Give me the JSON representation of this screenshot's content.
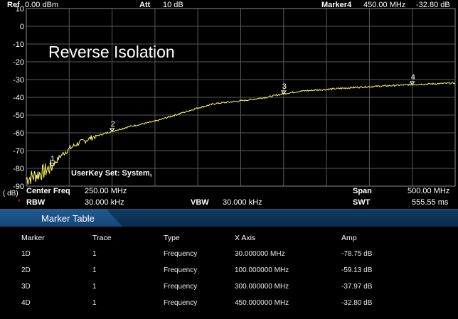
{
  "header": {
    "ref_label": "Ref",
    "ref_value": "0.00 dBm",
    "att_label": "Att",
    "att_value": "10 dB",
    "marker_label": "Marker4",
    "marker_freq": "450.00 MHz",
    "marker_amp": "-32.80 dB"
  },
  "plot": {
    "title": "Reverse Isolation",
    "userkey_text": "UserKey Set:   System,",
    "unit_label": "( dB)",
    "y_ticks": [
      "10",
      "0",
      "-10",
      "-20",
      "-30",
      "-40",
      "-50",
      "-60",
      "-70",
      "-80",
      "-90"
    ],
    "marker_labels": [
      "1",
      "2",
      "3",
      "4"
    ],
    "trace_color": "#ffff66",
    "grid_color": "#5a5a5a"
  },
  "footer": {
    "center_freq_label": "Center Freq",
    "center_freq_value": "250.00 MHz",
    "span_label": "Span",
    "span_value": "500.00 MHz",
    "rbw_label": "RBW",
    "rbw_value": "30.000 kHz",
    "vbw_label": "VBW",
    "vbw_value": "30.000 kHz",
    "swt_label": "SWT",
    "swt_value": "555.55 ms"
  },
  "marker_table": {
    "title": "Marker Table",
    "columns": [
      "Marker",
      "Trace",
      "Type",
      "X Axis",
      "Amp"
    ],
    "rows": [
      [
        "1D",
        "1",
        "Frequency",
        "30.000000 MHz",
        "-78.75 dB"
      ],
      [
        "2D",
        "1",
        "Frequency",
        "100.000000 MHz",
        "-59.13 dB"
      ],
      [
        "3D",
        "1",
        "Frequency",
        "300.000000 MHz",
        "-37.97 dB"
      ],
      [
        "4D",
        "1",
        "Frequency",
        "450.000000 MHz",
        "-32.80 dB"
      ]
    ]
  },
  "chart_data": {
    "type": "line",
    "title": "Reverse Isolation",
    "xlabel": "",
    "ylabel": "( dB)",
    "xlim": [
      0,
      500
    ],
    "ylim": [
      -90,
      10
    ],
    "grid": true,
    "series": [
      {
        "x": [
          0,
          10,
          20,
          30,
          40,
          50,
          60,
          80,
          100,
          120,
          150,
          180,
          200,
          220,
          250,
          280,
          300,
          320,
          350,
          380,
          400,
          430,
          450,
          480,
          500
        ],
        "values": [
          -86,
          -84,
          -82,
          -78.75,
          -73,
          -69,
          -66,
          -62,
          -59.13,
          -56.5,
          -53.5,
          -49,
          -46,
          -43.5,
          -42,
          -40,
          -37.97,
          -36.5,
          -35.5,
          -34.5,
          -34,
          -33.3,
          -32.8,
          -32.3,
          -32
        ]
      }
    ],
    "markers": [
      {
        "label": "1",
        "x": 30,
        "y": -78.75
      },
      {
        "label": "2",
        "x": 100,
        "y": -59.13
      },
      {
        "label": "3",
        "x": 300,
        "y": -37.97
      },
      {
        "label": "4",
        "x": 450,
        "y": -32.8
      }
    ]
  }
}
